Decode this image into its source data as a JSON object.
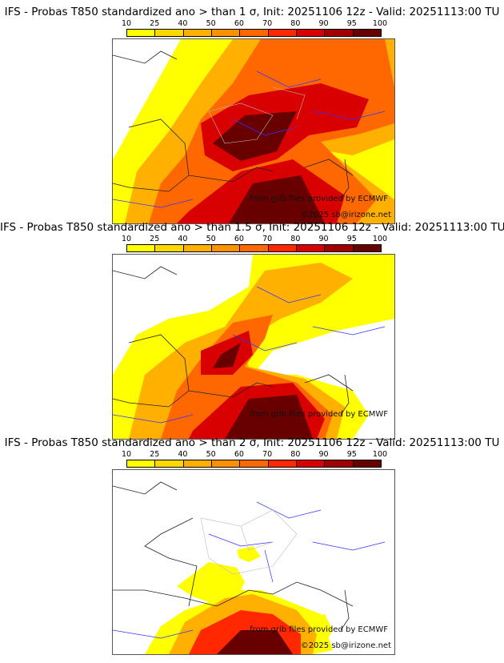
{
  "colorbar": {
    "ticks": [
      "10",
      "25",
      "40",
      "50",
      "60",
      "70",
      "80",
      "90",
      "95",
      "100"
    ],
    "colors": [
      "#ffff00",
      "#ffd800",
      "#ffb000",
      "#ff9000",
      "#ff6800",
      "#ff2800",
      "#d80000",
      "#a00000",
      "#680000"
    ]
  },
  "panels": [
    {
      "title": "IFS - Probas T850  standardized ano > than 1 σ, Init: 20251106 12z - Valid: 20251113:00 TU",
      "credit": "from grib files provided by ECMWF",
      "copyright": "©2025 sb@irizone.net"
    },
    {
      "title": "IFS - Probas T850  standardized ano > than 1.5 σ, Init: 20251106 12z - Valid: 20251113:00 TU",
      "credit": "from grib files provided by ECMWF",
      "copyright": ""
    },
    {
      "title": "IFS - Probas T850  standardized ano > than 2 σ, Init: 20251106 12z - Valid: 20251113:00 TU",
      "credit": "from grib files provided by ECMWF",
      "copyright": "©2025 sb@irizone.net"
    }
  ]
}
